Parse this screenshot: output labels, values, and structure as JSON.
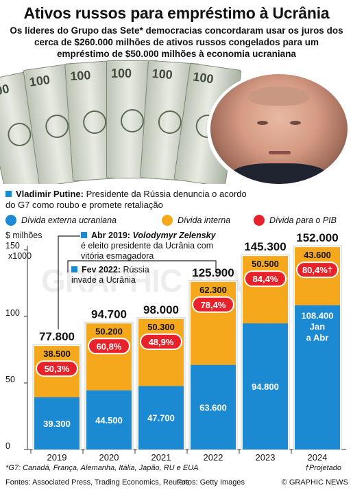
{
  "title": "Ativos russos para empréstimo à Ucrânia",
  "subtitle": "Os líderes do Grupo das Sete* democracias concordaram usar os juros dos cerca de $260.000 milhões de ativos russos congelados para um empréstimo de $50.000 milhões à economia ucraniana",
  "annotations": {
    "putin_name": "Vladimir Putine:",
    "putin_text": "Presidente da Rússia denuncia o acordo do G7 como roubo e promete retaliação",
    "zelensky_date": "Abr 2019:",
    "zelensky_name": "Volodymyr Zelensky",
    "zelensky_text": "é eleito presidente da Ucrânia com vitória esmagadora",
    "invasion_date": "Fev 2022:",
    "invasion_text": "Rússia invade a Ucrânia",
    "jan_abr": "Jan a Abr"
  },
  "legend": {
    "external": "Dívida externa ucraniana",
    "internal": "Dívida interna",
    "gdp": "Dívida para o PIB"
  },
  "axis": {
    "unit_line1": "$ milhões",
    "unit_line2": "x1000",
    "tick_150": "150",
    "tick_100": "100",
    "tick_50": "50",
    "tick_0": "0"
  },
  "notes": "*G7: Canadá, França, Alemanha, Itália, Japão, RU e EUA",
  "projected_note": "†Projetado",
  "sources": "Fontes: Associated Press, Trading Economics, Reuters",
  "photos": "Fotos: Getty Images",
  "credit": "© GRAPHIC NEWS",
  "watermark": "GRAPHIC NEWS",
  "colors": {
    "external": "#1b8ad3",
    "internal": "#f5a81c",
    "gdp": "#e8222a",
    "accent": "#1b8ad3"
  },
  "chart_data": {
    "type": "bar",
    "stacked": true,
    "categories": [
      "2019",
      "2020",
      "2021",
      "2022",
      "2023",
      "2024"
    ],
    "series": [
      {
        "name": "Dívida externa ucraniana",
        "values": [
          39.3,
          44.5,
          47.7,
          63.6,
          94.8,
          108.4
        ],
        "labels": [
          "39.300",
          "44.500",
          "47.700",
          "63.600",
          "94.800",
          "108.400"
        ]
      },
      {
        "name": "Dívida interna",
        "values": [
          38.5,
          50.2,
          50.3,
          62.3,
          50.5,
          43.6
        ],
        "labels": [
          "38.500",
          "50.200",
          "50.300",
          "62.300",
          "50.500",
          "43.600"
        ]
      }
    ],
    "totals": [
      "77.800",
      "94.700",
      "98.000",
      "125.900",
      "145.300",
      "152.000"
    ],
    "gdp_ratio": [
      "50,3%",
      "60,8%",
      "48,9%",
      "78,4%",
      "84,4%",
      "80,4%†"
    ],
    "ylim": [
      0,
      150
    ],
    "yticks": [
      0,
      50,
      100,
      150
    ],
    "grid": false
  }
}
